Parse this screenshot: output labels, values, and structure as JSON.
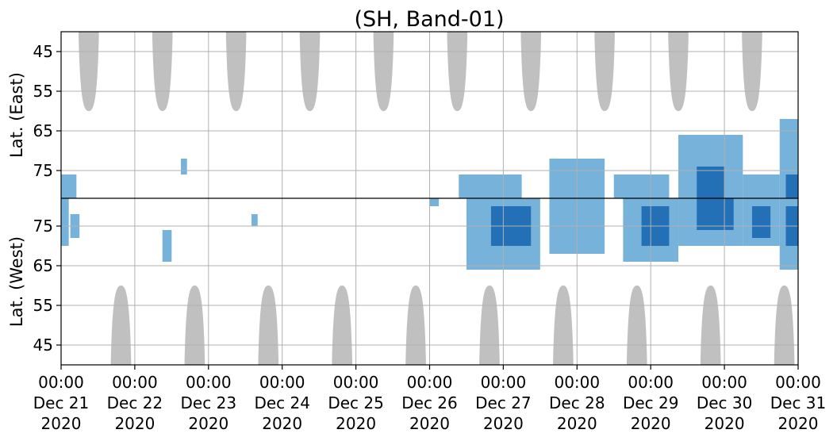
{
  "chart_data": {
    "type": "heatmap",
    "title": "(SH, Band-01)",
    "upper_panel_ylabel": "Lat. (East)",
    "lower_panel_ylabel": "Lat. (West)",
    "upper_yticks": [
      "45",
      "55",
      "65",
      "75"
    ],
    "lower_yticks": [
      "75",
      "65",
      "55",
      "45"
    ],
    "upper_ylim": [
      40,
      82
    ],
    "lower_ylim": [
      82,
      40
    ],
    "x_start": "2020-12-21 00:00",
    "x_end": "2020-12-31 00:00",
    "xticks": [
      {
        "time": "00:00",
        "date": "Dec 21",
        "year": "2020"
      },
      {
        "time": "00:00",
        "date": "Dec 22",
        "year": "2020"
      },
      {
        "time": "00:00",
        "date": "Dec 23",
        "year": "2020"
      },
      {
        "time": "00:00",
        "date": "Dec 24",
        "year": "2020"
      },
      {
        "time": "00:00",
        "date": "Dec 25",
        "year": "2020"
      },
      {
        "time": "00:00",
        "date": "Dec 26",
        "year": "2020"
      },
      {
        "time": "00:00",
        "date": "Dec 27",
        "year": "2020"
      },
      {
        "time": "00:00",
        "date": "Dec 28",
        "year": "2020"
      },
      {
        "time": "00:00",
        "date": "Dec 29",
        "year": "2020"
      },
      {
        "time": "00:00",
        "date": "Dec 30",
        "year": "2020"
      },
      {
        "time": "00:00",
        "date": "Dec 31",
        "year": "2020"
      }
    ],
    "grid": true,
    "colors": {
      "daylight": "#c0c0c0",
      "weak": "#5fa5d3",
      "strong": "#1f6db5",
      "grid": "#b0b0b0",
      "divider": "#000000"
    },
    "upper_daylight_humps": [
      {
        "center": "2020-12-21 09:00",
        "half_width_hours": 3.3,
        "min_lat": 60
      },
      {
        "center": "2020-12-22 09:00",
        "half_width_hours": 3.3,
        "min_lat": 60
      },
      {
        "center": "2020-12-23 09:00",
        "half_width_hours": 3.3,
        "min_lat": 60
      },
      {
        "center": "2020-12-24 09:00",
        "half_width_hours": 3.3,
        "min_lat": 60
      },
      {
        "center": "2020-12-25 09:00",
        "half_width_hours": 3.3,
        "min_lat": 60
      },
      {
        "center": "2020-12-26 09:00",
        "half_width_hours": 3.3,
        "min_lat": 60
      },
      {
        "center": "2020-12-27 09:00",
        "half_width_hours": 3.3,
        "min_lat": 60
      },
      {
        "center": "2020-12-28 09:00",
        "half_width_hours": 3.3,
        "min_lat": 60
      },
      {
        "center": "2020-12-29 09:00",
        "half_width_hours": 3.3,
        "min_lat": 60
      },
      {
        "center": "2020-12-30 09:00",
        "half_width_hours": 3.3,
        "min_lat": 60
      }
    ],
    "lower_daylight_humps": [
      {
        "center": "2020-12-21 19:30",
        "half_width_hours": 3.3,
        "min_lat": 60
      },
      {
        "center": "2020-12-22 19:30",
        "half_width_hours": 3.3,
        "min_lat": 60
      },
      {
        "center": "2020-12-23 19:30",
        "half_width_hours": 3.3,
        "min_lat": 60
      },
      {
        "center": "2020-12-24 19:30",
        "half_width_hours": 3.3,
        "min_lat": 60
      },
      {
        "center": "2020-12-25 19:30",
        "half_width_hours": 3.3,
        "min_lat": 60
      },
      {
        "center": "2020-12-26 19:30",
        "half_width_hours": 3.3,
        "min_lat": 60
      },
      {
        "center": "2020-12-27 19:30",
        "half_width_hours": 3.3,
        "min_lat": 60
      },
      {
        "center": "2020-12-28 19:30",
        "half_width_hours": 3.3,
        "min_lat": 60
      },
      {
        "center": "2020-12-29 19:30",
        "half_width_hours": 3.3,
        "min_lat": 60
      },
      {
        "center": "2020-12-30 19:30",
        "half_width_hours": 3.3,
        "min_lat": 60
      }
    ],
    "echo_regions": [
      {
        "panel": "upper",
        "start": "2020-12-21 00:00",
        "end": "2020-12-21 05:00",
        "lat_min": 76,
        "lat_max": 82,
        "level": "weak"
      },
      {
        "panel": "lower",
        "start": "2020-12-21 00:00",
        "end": "2020-12-21 02:30",
        "lat_min": 70,
        "lat_max": 82,
        "level": "weak"
      },
      {
        "panel": "lower",
        "start": "2020-12-21 03:00",
        "end": "2020-12-21 06:00",
        "lat_min": 72,
        "lat_max": 78,
        "level": "weak"
      },
      {
        "panel": "lower",
        "start": "2020-12-22 09:00",
        "end": "2020-12-22 12:00",
        "lat_min": 66,
        "lat_max": 74,
        "level": "weak"
      },
      {
        "panel": "upper",
        "start": "2020-12-22 15:00",
        "end": "2020-12-22 17:00",
        "lat_min": 72,
        "lat_max": 76,
        "level": "weak"
      },
      {
        "panel": "lower",
        "start": "2020-12-23 14:00",
        "end": "2020-12-23 16:00",
        "lat_min": 75,
        "lat_max": 78,
        "level": "weak"
      },
      {
        "panel": "lower",
        "start": "2020-12-26 00:00",
        "end": "2020-12-26 03:00",
        "lat_min": 80,
        "lat_max": 82,
        "level": "weak"
      },
      {
        "panel": "upper",
        "start": "2020-12-26 09:30",
        "end": "2020-12-27 06:00",
        "lat_min": 76,
        "lat_max": 82,
        "level": "weak"
      },
      {
        "panel": "lower",
        "start": "2020-12-26 12:00",
        "end": "2020-12-27 12:00",
        "lat_min": 64,
        "lat_max": 82,
        "level": "weak"
      },
      {
        "panel": "lower",
        "start": "2020-12-26 20:00",
        "end": "2020-12-27 09:00",
        "lat_min": 70,
        "lat_max": 80,
        "level": "strong"
      },
      {
        "panel": "upper",
        "start": "2020-12-27 15:00",
        "end": "2020-12-28 09:00",
        "lat_min": 72,
        "lat_max": 82,
        "level": "weak"
      },
      {
        "panel": "lower",
        "start": "2020-12-27 15:00",
        "end": "2020-12-28 09:00",
        "lat_min": 68,
        "lat_max": 82,
        "level": "weak"
      },
      {
        "panel": "upper",
        "start": "2020-12-28 12:00",
        "end": "2020-12-29 06:00",
        "lat_min": 76,
        "lat_max": 82,
        "level": "weak"
      },
      {
        "panel": "lower",
        "start": "2020-12-28 15:00",
        "end": "2020-12-29 09:00",
        "lat_min": 66,
        "lat_max": 82,
        "level": "weak"
      },
      {
        "panel": "lower",
        "start": "2020-12-28 21:00",
        "end": "2020-12-29 06:00",
        "lat_min": 70,
        "lat_max": 80,
        "level": "strong"
      },
      {
        "panel": "upper",
        "start": "2020-12-29 09:00",
        "end": "2020-12-30 06:00",
        "lat_min": 66,
        "lat_max": 82,
        "level": "weak"
      },
      {
        "panel": "upper",
        "start": "2020-12-29 15:00",
        "end": "2020-12-30 00:00",
        "lat_min": 74,
        "lat_max": 82,
        "level": "strong"
      },
      {
        "panel": "lower",
        "start": "2020-12-29 09:00",
        "end": "2020-12-30 06:00",
        "lat_min": 70,
        "lat_max": 82,
        "level": "weak"
      },
      {
        "panel": "lower",
        "start": "2020-12-29 15:00",
        "end": "2020-12-30 03:00",
        "lat_min": 74,
        "lat_max": 82,
        "level": "strong"
      },
      {
        "panel": "upper",
        "start": "2020-12-30 06:00",
        "end": "2020-12-30 18:00",
        "lat_min": 76,
        "lat_max": 82,
        "level": "weak"
      },
      {
        "panel": "lower",
        "start": "2020-12-30 06:00",
        "end": "2020-12-30 18:00",
        "lat_min": 70,
        "lat_max": 82,
        "level": "weak"
      },
      {
        "panel": "lower",
        "start": "2020-12-30 09:00",
        "end": "2020-12-30 15:00",
        "lat_min": 72,
        "lat_max": 80,
        "level": "strong"
      },
      {
        "panel": "upper",
        "start": "2020-12-30 18:00",
        "end": "2020-12-31 00:00",
        "lat_min": 62,
        "lat_max": 82,
        "level": "weak"
      },
      {
        "panel": "upper",
        "start": "2020-12-30 20:00",
        "end": "2020-12-31 00:00",
        "lat_min": 76,
        "lat_max": 82,
        "level": "strong"
      },
      {
        "panel": "lower",
        "start": "2020-12-30 18:00",
        "end": "2020-12-31 00:00",
        "lat_min": 64,
        "lat_max": 82,
        "level": "weak"
      },
      {
        "panel": "lower",
        "start": "2020-12-30 20:00",
        "end": "2020-12-31 00:00",
        "lat_min": 70,
        "lat_max": 80,
        "level": "strong"
      }
    ]
  }
}
